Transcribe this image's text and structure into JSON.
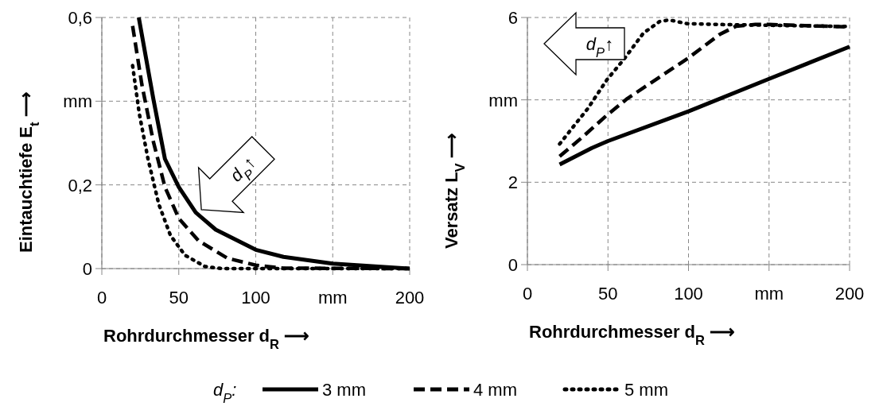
{
  "chart_data": [
    {
      "type": "line",
      "xlabel": "Rohrdurchmesser d$_{R}$ ⟶",
      "ylabel": "Eintauchtiefe E$_{t}$ ⟶",
      "xlim": [
        0,
        200
      ],
      "ylim": [
        0,
        0.6
      ],
      "xticks": [
        0,
        50,
        100,
        {
          "value": 150,
          "label": "mm"
        },
        200
      ],
      "yticks": [
        0,
        {
          "value": 0.2,
          "label": "0,2"
        },
        {
          "value": 0.4,
          "label": "mm"
        },
        {
          "value": 0.6,
          "label": "0,6"
        }
      ],
      "grid": true,
      "legend": "bottom",
      "legend_title": "d$_{P}$:",
      "annotations": [
        "d$_{P}$↑"
      ],
      "series": [
        {
          "name": "3 mm",
          "color": "#000000",
          "line_style": "solid",
          "x": [
            24,
            33.5,
            41,
            50,
            61,
            74,
            100,
            118,
            150,
            200
          ],
          "values": [
            0.6,
            0.405,
            0.262,
            0.195,
            0.134,
            0.093,
            0.045,
            0.028,
            0.012,
            0
          ]
        },
        {
          "name": "4 mm",
          "color": "#000000",
          "line_style": "dashed",
          "x": [
            20,
            26,
            33.5,
            41,
            50,
            63,
            81.5,
            100,
            118,
            200
          ],
          "values": [
            0.58,
            0.44,
            0.303,
            0.195,
            0.12,
            0.066,
            0.025,
            0.008,
            0.001,
            0
          ]
        },
        {
          "name": "5 mm",
          "color": "#000000",
          "line_style": "dotted",
          "x": [
            20,
            24.3,
            30,
            37,
            44.6,
            54,
            67,
            78,
            200
          ],
          "values": [
            0.485,
            0.371,
            0.262,
            0.154,
            0.079,
            0.032,
            0.005,
            0,
            0
          ]
        }
      ]
    },
    {
      "type": "line",
      "xlabel": "Rohrdurchmesser d$_{R}$ ⟶",
      "ylabel": "Versatz L$_{V}$ ⟶",
      "xlim": [
        0,
        200
      ],
      "ylim": [
        0,
        6
      ],
      "xticks": [
        0,
        50,
        100,
        {
          "value": 150,
          "label": "mm"
        },
        200
      ],
      "yticks": [
        0,
        2,
        {
          "value": 4,
          "label": "mm"
        },
        6
      ],
      "grid": true,
      "annotations": [
        "d$_{P}$↑"
      ],
      "series": [
        {
          "color": "#000000",
          "line_style": "solid",
          "x": [
            20,
            40,
            50,
            100,
            150,
            200
          ],
          "values": [
            2.43,
            2.83,
            3.0,
            3.72,
            4.51,
            5.29
          ]
        },
        {
          "color": "#000000",
          "line_style": "dashed",
          "x": [
            20,
            34,
            49.4,
            62,
            100,
            119.4,
            129.6,
            141.5,
            150,
            200
          ],
          "values": [
            2.63,
            3.09,
            3.63,
            4.03,
            5.02,
            5.59,
            5.79,
            5.83,
            5.83,
            5.77
          ]
        },
        {
          "color": "#000000",
          "line_style": "dotted",
          "x": [
            20,
            37.5,
            49.4,
            60,
            72,
            82,
            88,
            99,
            119,
            200
          ],
          "values": [
            2.93,
            3.79,
            4.49,
            4.99,
            5.62,
            5.9,
            5.94,
            5.85,
            5.83,
            5.78
          ]
        }
      ]
    }
  ]
}
